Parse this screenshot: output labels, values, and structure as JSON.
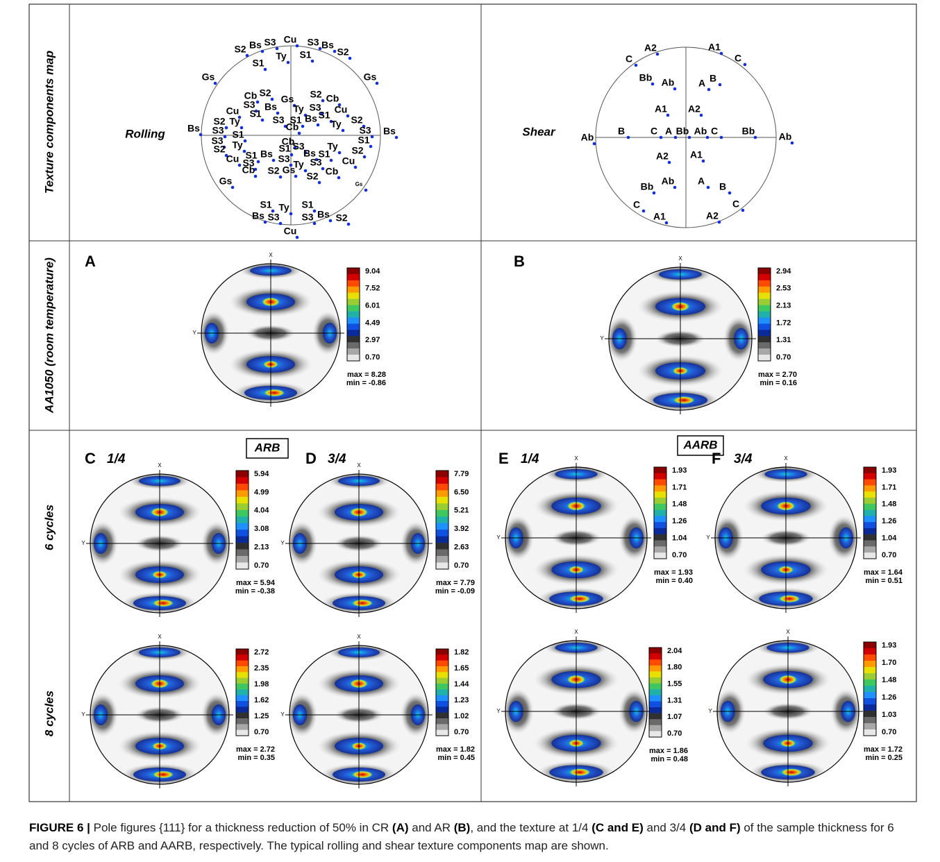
{
  "row_labels": [
    "Texture components map",
    "AA1050 (room temperature)",
    "6 cycles",
    "8 cycles"
  ],
  "texture_components_map": {
    "rolling": {
      "title": "Rolling",
      "labels": [
        "S2",
        "Bs",
        "S3",
        "Cu",
        "S3",
        "Bs",
        "S2",
        "Ty",
        "S1",
        "S1",
        "Gs",
        "Gs",
        "Cb",
        "S2",
        "Gs",
        "S2",
        "Cb",
        "S3",
        "Bs",
        "Ty",
        "S3",
        "Cu",
        "Cu",
        "S1",
        "S2",
        "Ty",
        "S3",
        "S1",
        "Bs",
        "S1",
        "Ty",
        "S2",
        "Cb",
        "Bs",
        "S3",
        "S1",
        "S3",
        "Bs",
        "S1",
        "S3",
        "Ty",
        "S2",
        "Cb",
        "S3",
        "S1",
        "Bs",
        "S1",
        "Ty",
        "S2",
        "Cu",
        "S1",
        "Bs",
        "S3",
        "Ty",
        "S3",
        "Cu",
        "S3",
        "Cb",
        "S2",
        "Gs",
        "S2",
        "Cb",
        "Gs",
        "Gs",
        "S1",
        "Ty",
        "S1",
        "Bs",
        "S3",
        "S3",
        "Bs",
        "S2",
        "Cu"
      ]
    },
    "shear": {
      "title": "Shear",
      "labels": [
        "A2",
        "A1",
        "C",
        "C",
        "Bb",
        "Ab",
        "A",
        "B",
        "A1",
        "A2",
        "Ab",
        "B",
        "C",
        "A",
        "Bb",
        "Ab",
        "C",
        "Bb",
        "Ab",
        "A2",
        "A1",
        "Bb",
        "Ab",
        "A",
        "B",
        "C",
        "C",
        "A1",
        "A2"
      ]
    }
  },
  "pole_axes": {
    "x": "X",
    "y": "Y"
  },
  "groups": [
    "ARB",
    "AARB"
  ],
  "pole_figures": [
    {
      "letter": "A",
      "ticks": [
        "9.04",
        "7.52",
        "6.01",
        "4.49",
        "2.97",
        "0.70"
      ],
      "max": "max = 8.28",
      "min": "min = -0.86"
    },
    {
      "letter": "B",
      "ticks": [
        "2.94",
        "2.53",
        "2.13",
        "1.72",
        "1.31",
        "0.70"
      ],
      "max": "max = 2.70",
      "min": "min = 0.16"
    },
    {
      "letter": "C",
      "depth": "1/4",
      "ticks": [
        "5.94",
        "4.99",
        "4.04",
        "3.08",
        "2.13",
        "0.70"
      ],
      "max": "max = 5.94",
      "min": "min = -0.38"
    },
    {
      "letter": "D",
      "depth": "3/4",
      "ticks": [
        "7.79",
        "6.50",
        "5.21",
        "3.92",
        "2.63",
        "0.70"
      ],
      "max": "max = 7.79",
      "min": "min = -0.09"
    },
    {
      "letter": "E",
      "depth": "1/4",
      "ticks": [
        "1.93",
        "1.71",
        "1.48",
        "1.26",
        "1.04",
        "0.70"
      ],
      "max": "max = 1.93",
      "min": "min = 0.40"
    },
    {
      "letter": "F",
      "depth": "3/4",
      "ticks": [
        "1.93",
        "1.71",
        "1.48",
        "1.26",
        "1.04",
        "0.70"
      ],
      "max": "max = 1.64",
      "min": "min = 0.51"
    },
    {
      "ticks": [
        "2.72",
        "2.35",
        "1.98",
        "1.62",
        "1.25",
        "0.70"
      ],
      "max": "max = 2.72",
      "min": "min = 0.35"
    },
    {
      "ticks": [
        "1.82",
        "1.65",
        "1.44",
        "1.23",
        "1.02",
        "0.70"
      ],
      "max": "max = 1.82",
      "min": "min = 0.45"
    },
    {
      "ticks": [
        "2.04",
        "1.80",
        "1.55",
        "1.31",
        "1.07",
        "0.70"
      ],
      "max": "max = 1.86",
      "min": "min = 0.48"
    },
    {
      "ticks": [
        "1.93",
        "1.70",
        "1.48",
        "1.26",
        "1.03",
        "0.70"
      ],
      "max": "max = 1.72",
      "min": "min = 0.25"
    }
  ],
  "caption": [
    {
      "text": "FIGURE 6 |",
      "bold": true
    },
    {
      "text": " Pole figures {111} for a thickness reduction of 50% in CR "
    },
    {
      "text": "(A)",
      "bold": true
    },
    {
      "text": " and AR "
    },
    {
      "text": "(B)",
      "bold": true
    },
    {
      "text": ", and the texture at 1/4 "
    },
    {
      "text": "(C and E)",
      "bold": true
    },
    {
      "text": " and 3/4 "
    },
    {
      "text": "(D and F)",
      "bold": true
    },
    {
      "text": " of the sample thickness for 6 and 8 cycles of ARB and AARB, respectively. The typical rolling and shear texture components map are shown."
    }
  ]
}
